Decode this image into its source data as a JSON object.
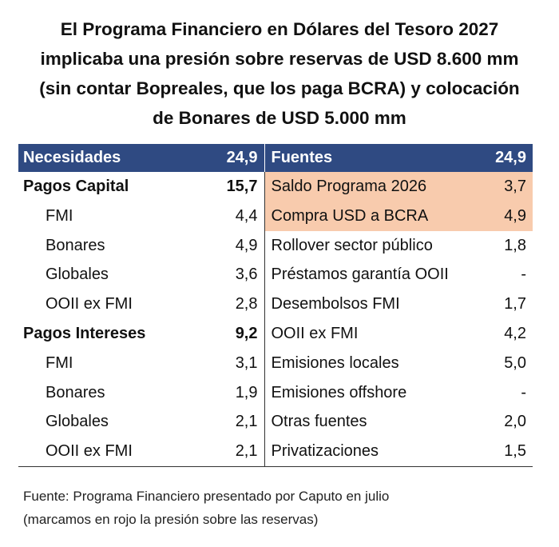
{
  "title_lines": [
    "El Programa Financiero en Dólares del Tesoro 2027",
    "implicaba una presión sobre reservas de USD 8.600 mm",
    "(sin contar Bopreales, que los paga BCRA) y colocación",
    "de Bonares de USD 5.000 mm"
  ],
  "header": {
    "left_label": "Necesidades",
    "left_value": "24,9",
    "right_label": "Fuentes",
    "right_value": "24,9",
    "bg_color": "#2f4a82"
  },
  "highlight_color": "#f8cbad",
  "rows": [
    {
      "left_label": "Pagos Capital",
      "left_value": "15,7",
      "right_label": "Saldo Programa 2026",
      "right_value": "3,7"
    },
    {
      "left_label": "FMI",
      "left_value": "4,4",
      "right_label": "Compra USD a BCRA",
      "right_value": "4,9"
    },
    {
      "left_label": "Bonares",
      "left_value": "4,9",
      "right_label": "Rollover sector público",
      "right_value": "1,8"
    },
    {
      "left_label": "Globales",
      "left_value": "3,6",
      "right_label": "Préstamos garantía OOII",
      "right_value": "-"
    },
    {
      "left_label": "OOII ex FMI",
      "left_value": "2,8",
      "right_label": "Desembolsos FMI",
      "right_value": "1,7"
    },
    {
      "left_label": "Pagos Intereses",
      "left_value": "9,2",
      "right_label": "OOII ex FMI",
      "right_value": "4,2"
    },
    {
      "left_label": "FMI",
      "left_value": "3,1",
      "right_label": "Emisiones locales",
      "right_value": "5,0"
    },
    {
      "left_label": "Bonares",
      "left_value": "1,9",
      "right_label": "Emisiones offshore",
      "right_value": "-"
    },
    {
      "left_label": "Globales",
      "left_value": "2,1",
      "right_label": "Otras fuentes",
      "right_value": "2,0"
    },
    {
      "left_label": "OOII ex FMI",
      "left_value": "2,1",
      "right_label": "Privatizaciones",
      "right_value": "1,5"
    }
  ],
  "note_lines": [
    "Fuente: Programa Financiero presentado por Caputo en julio",
    "(marcamos en rojo la presión sobre las reservas)"
  ]
}
